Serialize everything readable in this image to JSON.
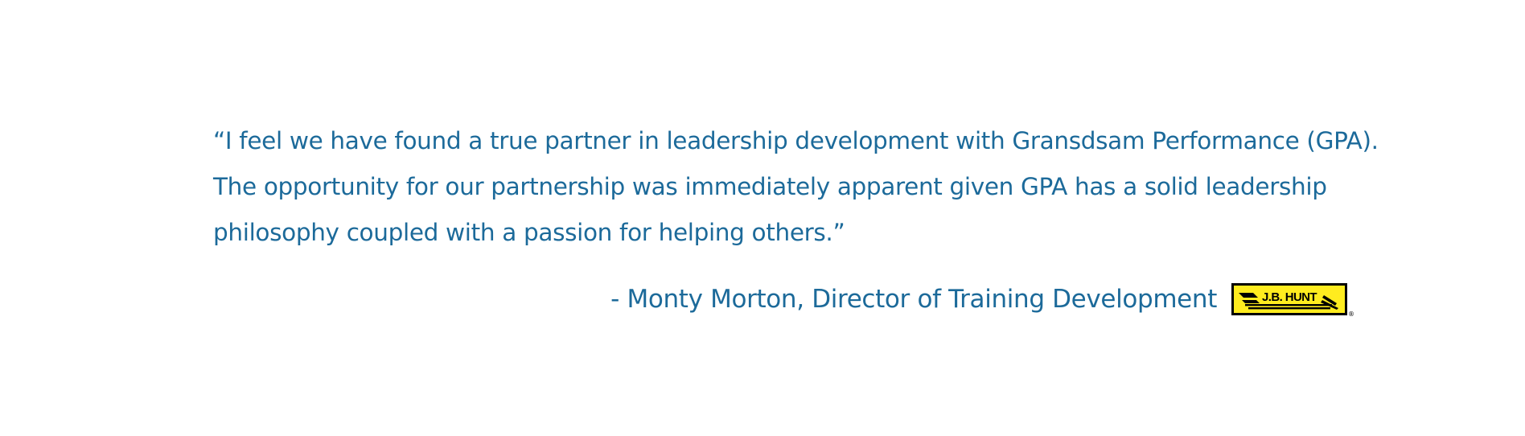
{
  "quote": {
    "lines": [
      "“I feel we have found a true partner in leadership development with Gransdsam Performance (GPA).",
      "The opportunity for our partnership was immediately apparent given GPA has a solid leadership",
      "philosophy coupled with a passion for helping others.”"
    ]
  },
  "attribution": {
    "text": "- Monty Morton, Director of Training Development"
  },
  "logo": {
    "wordmark": "J.B. HUNT",
    "registered": "®",
    "background_color": "#ffec1f",
    "border_color": "#000000"
  },
  "colors": {
    "text": "#1c6a9a",
    "background": "#ffffff"
  }
}
